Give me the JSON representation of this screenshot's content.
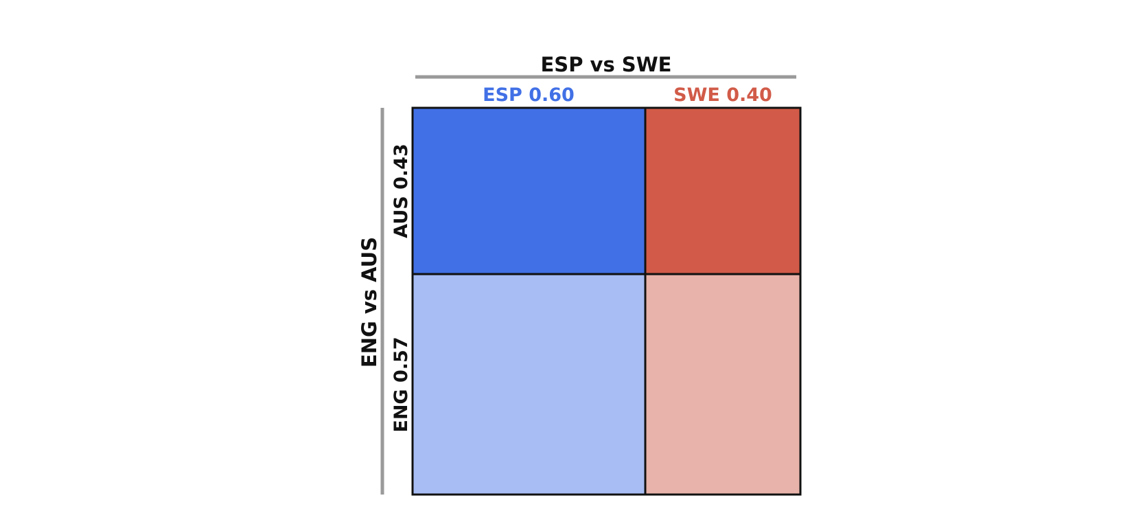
{
  "chart_data": {
    "type": "heatmap",
    "title": "ESP vs SWE",
    "ylabel": "ENG vs AUS",
    "columns": [
      {
        "label": "ESP 0.60",
        "name": "ESP",
        "value": 0.6,
        "color": "#4170E6"
      },
      {
        "label": "SWE 0.40",
        "name": "SWE",
        "value": 0.4,
        "color": "#D15B48"
      }
    ],
    "rows": [
      {
        "label": "AUS 0.43",
        "name": "AUS",
        "value": 0.43
      },
      {
        "label": "ENG 0.57",
        "name": "ENG",
        "value": 0.57
      }
    ],
    "cells": [
      [
        {
          "color": "#4170E6"
        },
        {
          "color": "#D15B48"
        }
      ],
      [
        {
          "color": "#A7BDF4"
        },
        {
          "color": "#E8B3AA"
        }
      ]
    ],
    "colors": {
      "axis_bar": "#9A9A9A",
      "border": "#111111",
      "text": "#111111"
    }
  }
}
